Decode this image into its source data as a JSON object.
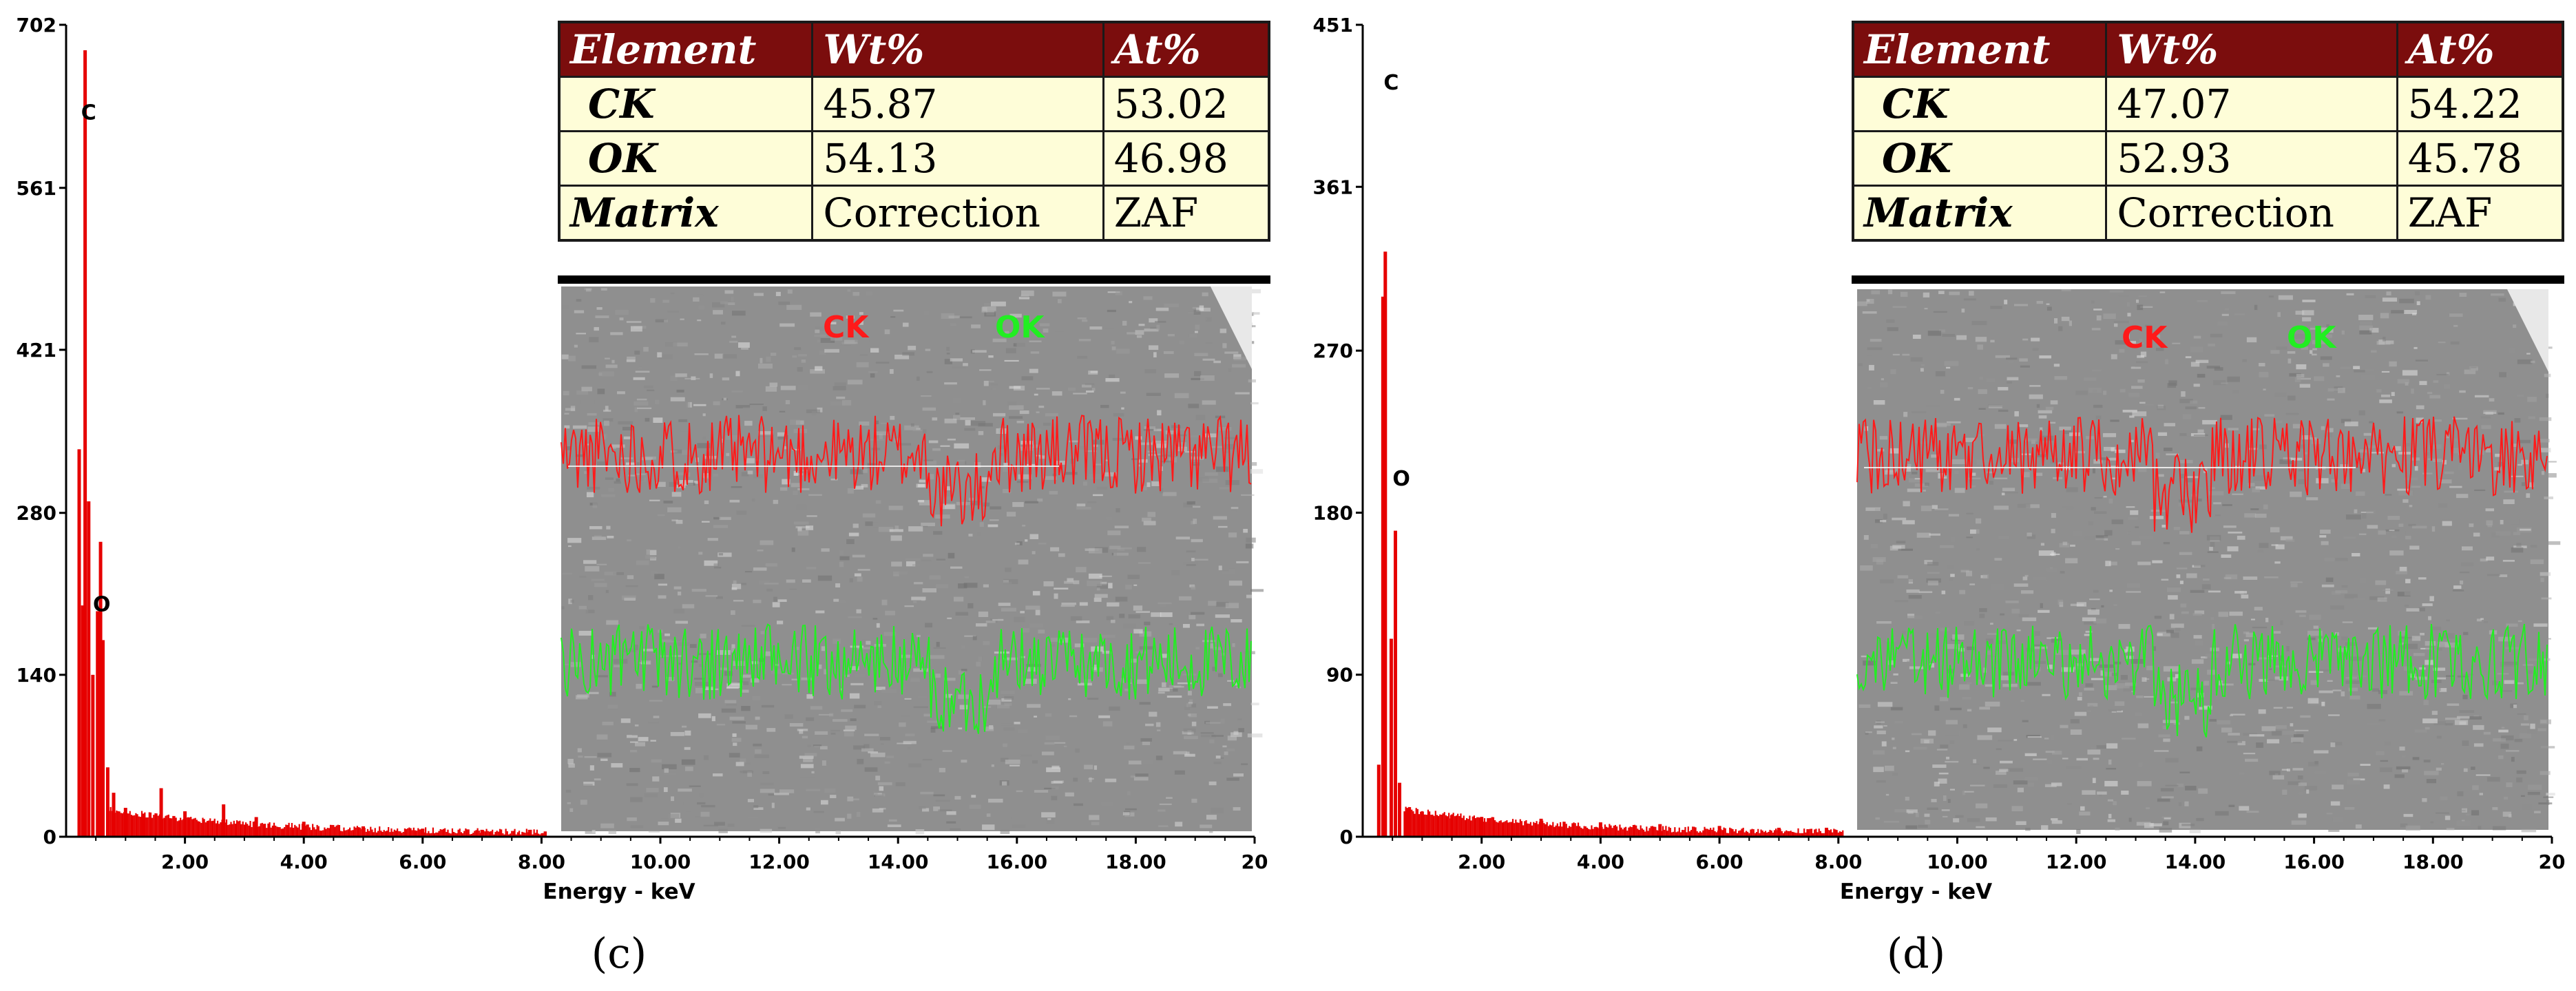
{
  "panels": [
    {
      "id": "c",
      "caption": "(c)",
      "table": {
        "headers": [
          "Element",
          "Wt%",
          "At%"
        ],
        "rows": [
          [
            "CK",
            "45.87",
            "53.02"
          ],
          [
            "OK",
            "54.13",
            "46.98"
          ],
          [
            "Matrix",
            "Correction",
            "ZAF"
          ]
        ]
      },
      "map_labels": {
        "ck": "CK",
        "ok": "OK"
      }
    },
    {
      "id": "d",
      "caption": "(d)",
      "table": {
        "headers": [
          "Element",
          "Wt%",
          "At%"
        ],
        "rows": [
          [
            "CK",
            "47.07",
            "54.22"
          ],
          [
            "OK",
            "52.93",
            "45.78"
          ],
          [
            "Matrix",
            "Correction",
            "ZAF"
          ]
        ]
      },
      "map_labels": {
        "ck": "CK",
        "ok": "OK"
      }
    }
  ],
  "chart_data": [
    {
      "type": "bar",
      "title": "(c)",
      "xlabel": "Energy - keV",
      "ylabel": "",
      "xlim": [
        0,
        20
      ],
      "ylim": [
        0,
        702
      ],
      "yticks": [
        0,
        140,
        280,
        421,
        561,
        702
      ],
      "ytick_labels": [
        "0",
        "140",
        "280",
        "421",
        "561",
        "702"
      ],
      "xticks": [
        2,
        4,
        6,
        8,
        10,
        12,
        14,
        16,
        18,
        20
      ],
      "xtick_labels": [
        "2.00",
        "4.00",
        "6.00",
        "8.00",
        "10.00",
        "12.00",
        "14.00",
        "16.00",
        "18.00",
        "20"
      ],
      "series_color": "#e60000",
      "peaks": [
        {
          "energy": 0.22,
          "counts": 335
        },
        {
          "energy": 0.28,
          "counts": 200
        },
        {
          "energy": 0.32,
          "counts": 680
        },
        {
          "energy": 0.38,
          "counts": 290
        },
        {
          "energy": 0.45,
          "counts": 140
        },
        {
          "energy": 0.53,
          "counts": 195
        },
        {
          "energy": 0.58,
          "counts": 255
        },
        {
          "energy": 0.62,
          "counts": 170
        },
        {
          "energy": 0.7,
          "counts": 60
        },
        {
          "energy": 0.8,
          "counts": 38
        },
        {
          "energy": 1.0,
          "counts": 25
        },
        {
          "energy": 1.3,
          "counts": 20
        },
        {
          "energy": 1.6,
          "counts": 42
        },
        {
          "energy": 2.0,
          "counts": 22
        },
        {
          "energy": 2.65,
          "counts": 28
        },
        {
          "energy": 3.2,
          "counts": 17
        },
        {
          "energy": 4.0,
          "counts": 13
        },
        {
          "energy": 5.0,
          "counts": 9
        },
        {
          "energy": 6.0,
          "counts": 7
        },
        {
          "energy": 7.0,
          "counts": 6
        },
        {
          "energy": 7.8,
          "counts": 6
        }
      ],
      "annotations": [
        {
          "text": "C",
          "energy": 0.38,
          "counts": 620
        },
        {
          "text": "O",
          "energy": 0.6,
          "counts": 195
        }
      ]
    },
    {
      "type": "bar",
      "title": "(d)",
      "xlabel": "Energy - keV",
      "ylabel": "",
      "xlim": [
        0,
        20
      ],
      "ylim": [
        0,
        451
      ],
      "yticks": [
        0,
        90,
        180,
        270,
        361,
        451
      ],
      "ytick_labels": [
        "0",
        "90",
        "180",
        "270",
        "361",
        "451"
      ],
      "xticks": [
        2,
        4,
        6,
        8,
        10,
        12,
        14,
        16,
        18,
        20
      ],
      "xtick_labels": [
        "2.00",
        "4.00",
        "6.00",
        "8.00",
        "10.00",
        "12.00",
        "14.00",
        "16.00",
        "18.00",
        "20"
      ],
      "series_color": "#e60000",
      "peaks": [
        {
          "energy": 0.27,
          "counts": 40
        },
        {
          "energy": 0.34,
          "counts": 300
        },
        {
          "energy": 0.38,
          "counts": 325
        },
        {
          "energy": 0.48,
          "counts": 110
        },
        {
          "energy": 0.55,
          "counts": 170
        },
        {
          "energy": 0.62,
          "counts": 30
        },
        {
          "energy": 0.75,
          "counts": 16
        },
        {
          "energy": 1.0,
          "counts": 14
        },
        {
          "energy": 1.5,
          "counts": 12
        },
        {
          "energy": 2.0,
          "counts": 11
        },
        {
          "energy": 3.0,
          "counts": 10
        },
        {
          "energy": 4.0,
          "counts": 8
        },
        {
          "energy": 5.0,
          "counts": 7
        },
        {
          "energy": 6.0,
          "counts": 6
        },
        {
          "energy": 7.0,
          "counts": 5
        },
        {
          "energy": 7.8,
          "counts": 5
        }
      ],
      "annotations": [
        {
          "text": "C",
          "energy": 0.48,
          "counts": 415
        },
        {
          "text": "O",
          "energy": 0.65,
          "counts": 195
        }
      ]
    }
  ]
}
